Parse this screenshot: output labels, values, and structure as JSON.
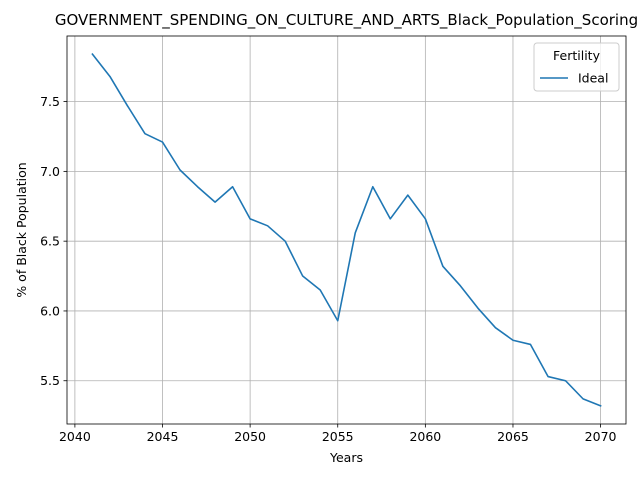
{
  "chart_data": {
    "type": "line",
    "title": "GOVERNMENT_SPENDING_ON_CULTURE_AND_ARTS_Black_Population_Scoring",
    "xlabel": "Years",
    "ylabel": "% of Black Population",
    "xlim": [
      2039.55,
      2071.45
    ],
    "ylim": [
      5.19,
      7.97
    ],
    "xticks": [
      2040,
      2045,
      2050,
      2055,
      2060,
      2065,
      2070
    ],
    "yticks": [
      5.5,
      6.0,
      6.5,
      7.0,
      7.5
    ],
    "xtick_labels": [
      "2040",
      "2045",
      "2050",
      "2055",
      "2060",
      "2065",
      "2070"
    ],
    "ytick_labels": [
      "5.5",
      "6.0",
      "6.5",
      "7.0",
      "7.5"
    ],
    "grid": true,
    "legend": {
      "title": "Fertility",
      "placement": "top-right"
    },
    "series": [
      {
        "name": "Ideal",
        "color": "#1f77b4",
        "x": [
          2041,
          2042,
          2043,
          2044,
          2045,
          2046,
          2047,
          2048,
          2049,
          2050,
          2051,
          2052,
          2053,
          2054,
          2055,
          2056,
          2057,
          2058,
          2059,
          2060,
          2061,
          2062,
          2063,
          2064,
          2065,
          2066,
          2067,
          2068,
          2069,
          2070
        ],
        "y": [
          7.84,
          7.68,
          7.47,
          7.27,
          7.21,
          7.01,
          6.89,
          6.78,
          6.89,
          6.66,
          6.61,
          6.5,
          6.25,
          6.15,
          5.93,
          6.56,
          6.89,
          6.66,
          6.83,
          6.66,
          6.32,
          6.18,
          6.02,
          5.88,
          5.79,
          5.76,
          5.53,
          5.5,
          5.37,
          5.32
        ]
      }
    ]
  }
}
